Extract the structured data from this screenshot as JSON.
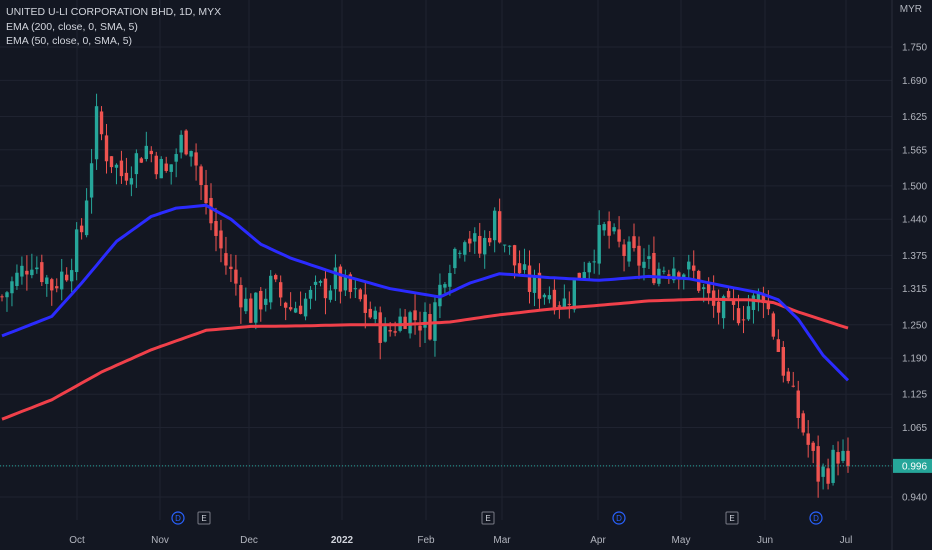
{
  "legend": {
    "title": "UNITED U-LI CORPORATION BHD, 1D, MYX",
    "ema_fast": "EMA (200, close, 0, SMA, 5)",
    "ema_slow": "EMA (50, close, 0, SMA, 5)"
  },
  "currency": "MYR",
  "last_price_label": "0.996",
  "colors": {
    "background": "#131722",
    "up": "#26a69a",
    "down": "#ef5350",
    "ema_blue": "#2b2bff",
    "ema_red": "#f0404a",
    "last_price_tag": "#26a69a"
  },
  "chart_data": {
    "type": "candlestick",
    "y_axis": {
      "ticks": [
        "1.750",
        "1.690",
        "1.625",
        "1.565",
        "1.500",
        "1.440",
        "1.375",
        "1.315",
        "1.250",
        "1.190",
        "1.125",
        "1.065",
        "0.996",
        "0.940"
      ],
      "ylim": [
        0.905,
        1.81
      ]
    },
    "x_axis": {
      "ticks": [
        "Oct",
        "Nov",
        "Dec",
        "2022",
        "Feb",
        "Mar",
        "Apr",
        "May",
        "Jun",
        "Jul"
      ],
      "bold_ticks": [
        "2022"
      ]
    },
    "event_markers": [
      {
        "type": "D",
        "after_tick": "Nov"
      },
      {
        "type": "E",
        "after_tick": "Nov"
      },
      {
        "type": "E",
        "after_tick": "Feb"
      },
      {
        "type": "D",
        "after_tick": "Mar"
      },
      {
        "type": "E",
        "after_tick": "May"
      },
      {
        "type": "D",
        "after_tick": "Jun"
      }
    ],
    "last_price": 0.996,
    "keypoints": [
      {
        "t": 0,
        "p": 1.3
      },
      {
        "t": 6,
        "p": 1.37
      },
      {
        "t": 10,
        "p": 1.32
      },
      {
        "t": 13,
        "p": 1.35
      },
      {
        "t": 16,
        "p": 1.42
      },
      {
        "t": 19,
        "p": 1.62
      },
      {
        "t": 21,
        "p": 1.56
      },
      {
        "t": 24,
        "p": 1.52
      },
      {
        "t": 29,
        "p": 1.57
      },
      {
        "t": 33,
        "p": 1.52
      },
      {
        "t": 36,
        "p": 1.58
      },
      {
        "t": 38,
        "p": 1.58
      },
      {
        "t": 41,
        "p": 1.46
      },
      {
        "t": 45,
        "p": 1.36
      },
      {
        "t": 50,
        "p": 1.27
      },
      {
        "t": 54,
        "p": 1.32
      },
      {
        "t": 58,
        "p": 1.28
      },
      {
        "t": 62,
        "p": 1.3
      },
      {
        "t": 67,
        "p": 1.33
      },
      {
        "t": 72,
        "p": 1.29
      },
      {
        "t": 77,
        "p": 1.23
      },
      {
        "t": 81,
        "p": 1.27
      },
      {
        "t": 86,
        "p": 1.25
      },
      {
        "t": 89,
        "p": 1.35
      },
      {
        "t": 93,
        "p": 1.42
      },
      {
        "t": 96,
        "p": 1.38
      },
      {
        "t": 99,
        "p": 1.44
      },
      {
        "t": 103,
        "p": 1.36
      },
      {
        "t": 106,
        "p": 1.32
      },
      {
        "t": 110,
        "p": 1.31
      },
      {
        "t": 113,
        "p": 1.29
      },
      {
        "t": 117,
        "p": 1.36
      },
      {
        "t": 121,
        "p": 1.42
      },
      {
        "t": 125,
        "p": 1.38
      },
      {
        "t": 131,
        "p": 1.35
      },
      {
        "t": 135,
        "p": 1.36
      },
      {
        "t": 139,
        "p": 1.34
      },
      {
        "t": 143,
        "p": 1.28
      },
      {
        "t": 147,
        "p": 1.27
      },
      {
        "t": 151,
        "p": 1.29
      },
      {
        "t": 153,
        "p": 1.31
      },
      {
        "t": 155,
        "p": 1.24
      },
      {
        "t": 158,
        "p": 1.14
      },
      {
        "t": 161,
        "p": 1.06
      },
      {
        "t": 164,
        "p": 0.98
      },
      {
        "t": 166,
        "p": 0.99
      },
      {
        "t": 168,
        "p": 1.02
      },
      {
        "t": 170,
        "p": 0.996
      }
    ],
    "ema_200": [
      {
        "t": 0,
        "p": 1.08
      },
      {
        "t": 10,
        "p": 1.115
      },
      {
        "t": 20,
        "p": 1.165
      },
      {
        "t": 30,
        "p": 1.205
      },
      {
        "t": 41,
        "p": 1.24
      },
      {
        "t": 50,
        "p": 1.247
      },
      {
        "t": 60,
        "p": 1.248
      },
      {
        "t": 70,
        "p": 1.25
      },
      {
        "t": 80,
        "p": 1.25
      },
      {
        "t": 90,
        "p": 1.255
      },
      {
        "t": 100,
        "p": 1.268
      },
      {
        "t": 110,
        "p": 1.278
      },
      {
        "t": 120,
        "p": 1.285
      },
      {
        "t": 130,
        "p": 1.293
      },
      {
        "t": 140,
        "p": 1.296
      },
      {
        "t": 150,
        "p": 1.295
      },
      {
        "t": 155,
        "p": 1.29
      },
      {
        "t": 160,
        "p": 1.273
      },
      {
        "t": 170,
        "p": 1.244
      }
    ],
    "ema_50": [
      {
        "t": 0,
        "p": 1.23
      },
      {
        "t": 10,
        "p": 1.265
      },
      {
        "t": 16,
        "p": 1.325
      },
      {
        "t": 23,
        "p": 1.4
      },
      {
        "t": 30,
        "p": 1.445
      },
      {
        "t": 35,
        "p": 1.46
      },
      {
        "t": 41,
        "p": 1.465
      },
      {
        "t": 46,
        "p": 1.44
      },
      {
        "t": 52,
        "p": 1.395
      },
      {
        "t": 58,
        "p": 1.37
      },
      {
        "t": 68,
        "p": 1.34
      },
      {
        "t": 78,
        "p": 1.315
      },
      {
        "t": 88,
        "p": 1.3
      },
      {
        "t": 94,
        "p": 1.325
      },
      {
        "t": 100,
        "p": 1.342
      },
      {
        "t": 110,
        "p": 1.335
      },
      {
        "t": 120,
        "p": 1.33
      },
      {
        "t": 130,
        "p": 1.337
      },
      {
        "t": 138,
        "p": 1.333
      },
      {
        "t": 145,
        "p": 1.32
      },
      {
        "t": 152,
        "p": 1.308
      },
      {
        "t": 156,
        "p": 1.295
      },
      {
        "t": 160,
        "p": 1.26
      },
      {
        "t": 165,
        "p": 1.195
      },
      {
        "t": 170,
        "p": 1.15
      }
    ]
  }
}
